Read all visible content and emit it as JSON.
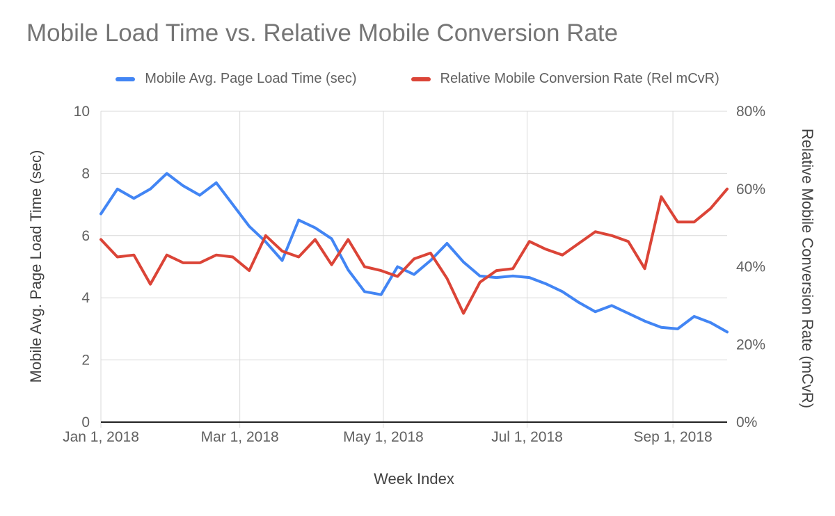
{
  "title": "Mobile Load Time vs. Relative Mobile Conversion Rate",
  "legend": [
    {
      "label": "Mobile Avg. Page Load Time (sec)",
      "color": "#4285f4"
    },
    {
      "label": "Relative Mobile Conversion Rate (Rel mCvR)",
      "color": "#db4437"
    }
  ],
  "chart_data": {
    "type": "line",
    "title": "Mobile Load Time vs. Relative Mobile Conversion Rate",
    "xlabel": "Week Index",
    "x_unit": "weeks since Jan 1, 2018",
    "grid": true,
    "legend_position": "top",
    "x_tick_labels": [
      "Jan 1, 2018",
      "Mar 1, 2018",
      "May 1, 2018",
      "Jul 1, 2018",
      "Sep 1, 2018"
    ],
    "x_tick_week_index": [
      0,
      8.43,
      17.14,
      25.86,
      34.71
    ],
    "left_axis": {
      "title": "Mobile Avg. Page Load Time (sec)",
      "min": 0,
      "max": 10,
      "ticks": [
        0,
        2,
        4,
        6,
        8,
        10
      ],
      "tick_labels": [
        "0",
        "2",
        "4",
        "6",
        "8",
        "10"
      ]
    },
    "right_axis": {
      "title": "Relative Mobile Conversion Rate (mCvR)",
      "min": 0,
      "max": 80,
      "ticks": [
        0,
        20,
        40,
        60,
        80
      ],
      "tick_labels": [
        "0%",
        "20%",
        "40%",
        "60%",
        "80%"
      ]
    },
    "series": [
      {
        "name": "Mobile Avg. Page Load Time (sec)",
        "axis": "left",
        "unit": "sec",
        "color": "#4285f4",
        "values": [
          6.7,
          7.5,
          7.2,
          7.5,
          8.0,
          7.6,
          7.3,
          7.7,
          7.0,
          6.3,
          5.8,
          5.2,
          6.5,
          6.25,
          5.9,
          4.9,
          4.2,
          4.1,
          5.0,
          4.75,
          5.2,
          5.75,
          5.15,
          4.7,
          4.65,
          4.7,
          4.65,
          4.45,
          4.2,
          3.85,
          3.55,
          3.75,
          3.5,
          3.25,
          3.05,
          3.0,
          3.4,
          3.2,
          2.9
        ]
      },
      {
        "name": "Relative Mobile Conversion Rate (Rel mCvR)",
        "axis": "right",
        "unit": "%",
        "color": "#db4437",
        "values": [
          47,
          42.5,
          43,
          35.5,
          43,
          41,
          41,
          43,
          42.5,
          39,
          48,
          44,
          42.5,
          47,
          40.5,
          47,
          40,
          39,
          37.5,
          42,
          43.5,
          37,
          28,
          36,
          39,
          39.5,
          46.5,
          44.5,
          43,
          46,
          49,
          48,
          46.5,
          39.5,
          58,
          51.5,
          51.5,
          55,
          60
        ]
      }
    ]
  }
}
